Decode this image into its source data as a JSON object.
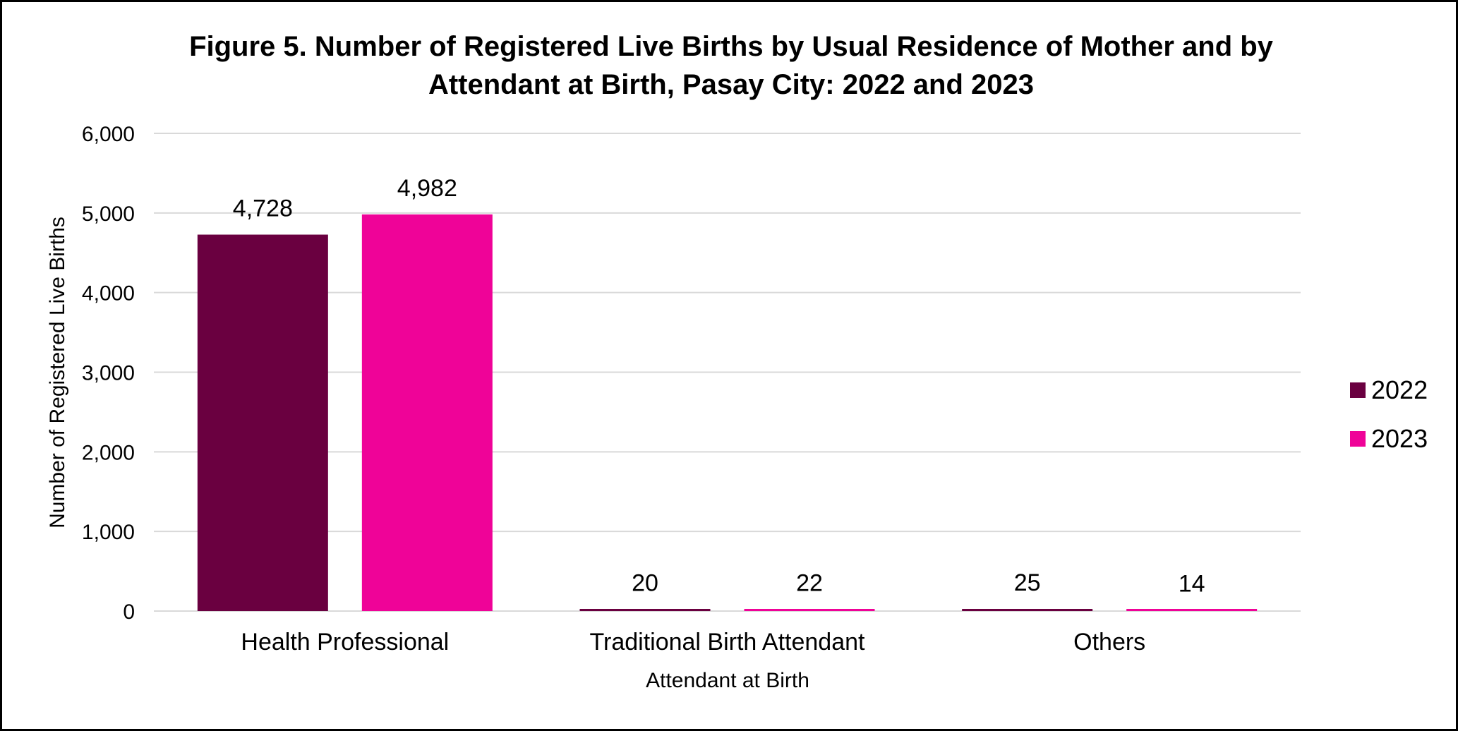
{
  "chart_data": {
    "type": "bar",
    "title_lines": [
      "Figure 5. Number of Registered Live Births by Usual Residence of Mother and by",
      "Attendant at Birth, Pasay City: 2022 and 2023"
    ],
    "xlabel": "Attendant at Birth",
    "ylabel": "Number of Registered Live Births",
    "categories": [
      "Health Professional",
      "Traditional Birth Attendant",
      "Others"
    ],
    "series": [
      {
        "name": "2022",
        "color": "#6a0040",
        "values": [
          4728,
          20,
          25
        ],
        "labels": [
          "4,728",
          "20",
          "25"
        ]
      },
      {
        "name": "2023",
        "color": "#ef0398",
        "values": [
          4982,
          22,
          14
        ],
        "labels": [
          "4,982",
          "22",
          "14"
        ]
      }
    ],
    "ylim": [
      0,
      6000
    ],
    "yticks": [
      0,
      1000,
      2000,
      3000,
      4000,
      5000,
      6000
    ],
    "ytick_labels": [
      "0",
      "1,000",
      "2,000",
      "3,000",
      "4,000",
      "5,000",
      "6,000"
    ],
    "grid": true,
    "legend_position": "right"
  }
}
